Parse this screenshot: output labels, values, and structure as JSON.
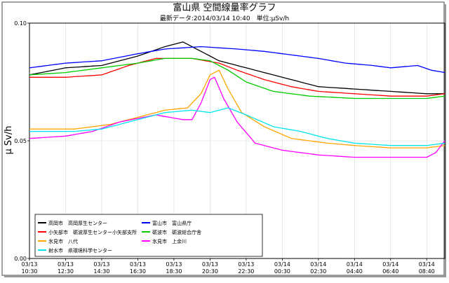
{
  "chart_data": {
    "type": "line",
    "title": "富山県 空間線量率グラフ",
    "subtitle": "最新データ:2014/03/14 10:40　単位:μSv/h",
    "ylabel": "μ Sv/h",
    "ylim": [
      0.0,
      0.1
    ],
    "y_ticks": [
      "0.10",
      "0.05",
      "0.00"
    ],
    "y_tick_values": [
      0.1,
      0.05,
      0.0
    ],
    "x_count": 93,
    "x_ticks": [
      {
        "i": 0,
        "date": "03/13",
        "time": "10:30"
      },
      {
        "i": 8,
        "date": "03/13",
        "time": "12:30"
      },
      {
        "i": 16,
        "date": "03/13",
        "time": "14:30"
      },
      {
        "i": 24,
        "date": "03/13",
        "time": "16:30"
      },
      {
        "i": 32,
        "date": "03/13",
        "time": "18:30"
      },
      {
        "i": 40,
        "date": "03/13",
        "time": "20:30"
      },
      {
        "i": 48,
        "date": "03/13",
        "time": "22:30"
      },
      {
        "i": 56,
        "date": "03/14",
        "time": "00:30"
      },
      {
        "i": 64,
        "date": "03/14",
        "time": "02:30"
      },
      {
        "i": 72,
        "date": "03/14",
        "time": "04:40"
      },
      {
        "i": 80,
        "date": "03/14",
        "time": "06:40"
      },
      {
        "i": 88,
        "date": "03/14",
        "time": "08:40"
      }
    ],
    "grid": true,
    "legend_position": "bottom-left",
    "series": [
      {
        "name": "高岡市　高岡厚生センター",
        "color": "#000000",
        "knots": [
          [
            0,
            0.078
          ],
          [
            8,
            0.081
          ],
          [
            16,
            0.082
          ],
          [
            24,
            0.086
          ],
          [
            30,
            0.09
          ],
          [
            34,
            0.092
          ],
          [
            38,
            0.088
          ],
          [
            42,
            0.084
          ],
          [
            46,
            0.082
          ],
          [
            52,
            0.079
          ],
          [
            58,
            0.076
          ],
          [
            64,
            0.073
          ],
          [
            72,
            0.072
          ],
          [
            80,
            0.071
          ],
          [
            88,
            0.07
          ],
          [
            92,
            0.07
          ]
        ]
      },
      {
        "name": "富山市　富山県庁",
        "color": "#0000ff",
        "knots": [
          [
            0,
            0.081
          ],
          [
            8,
            0.083
          ],
          [
            16,
            0.084
          ],
          [
            24,
            0.087
          ],
          [
            30,
            0.089
          ],
          [
            38,
            0.09
          ],
          [
            46,
            0.089
          ],
          [
            52,
            0.088
          ],
          [
            56,
            0.087
          ],
          [
            64,
            0.085
          ],
          [
            70,
            0.083
          ],
          [
            76,
            0.082
          ],
          [
            80,
            0.081
          ],
          [
            86,
            0.082
          ],
          [
            89,
            0.08
          ],
          [
            92,
            0.079
          ]
        ]
      },
      {
        "name": "小矢部市　砺波厚生センター小矢部支所",
        "color": "#ff0000",
        "knots": [
          [
            0,
            0.077
          ],
          [
            8,
            0.077
          ],
          [
            16,
            0.078
          ],
          [
            22,
            0.082
          ],
          [
            28,
            0.085
          ],
          [
            36,
            0.085
          ],
          [
            42,
            0.083
          ],
          [
            46,
            0.08
          ],
          [
            52,
            0.076
          ],
          [
            58,
            0.073
          ],
          [
            64,
            0.071
          ],
          [
            72,
            0.07
          ],
          [
            80,
            0.069
          ],
          [
            88,
            0.069
          ],
          [
            92,
            0.07
          ]
        ]
      },
      {
        "name": "砺波市　砺波総合庁舎",
        "color": "#00cc00",
        "knots": [
          [
            0,
            0.078
          ],
          [
            8,
            0.079
          ],
          [
            16,
            0.081
          ],
          [
            24,
            0.083
          ],
          [
            30,
            0.085
          ],
          [
            36,
            0.085
          ],
          [
            40,
            0.084
          ],
          [
            44,
            0.08
          ],
          [
            48,
            0.075
          ],
          [
            54,
            0.071
          ],
          [
            62,
            0.069
          ],
          [
            72,
            0.068
          ],
          [
            80,
            0.068
          ],
          [
            88,
            0.068
          ],
          [
            92,
            0.069
          ]
        ]
      },
      {
        "name": "氷見市　八代",
        "color": "#ffa500",
        "knots": [
          [
            0,
            0.055
          ],
          [
            10,
            0.055
          ],
          [
            18,
            0.057
          ],
          [
            24,
            0.06
          ],
          [
            30,
            0.063
          ],
          [
            35,
            0.064
          ],
          [
            38,
            0.07
          ],
          [
            40,
            0.078
          ],
          [
            42,
            0.08
          ],
          [
            44,
            0.072
          ],
          [
            47,
            0.062
          ],
          [
            52,
            0.056
          ],
          [
            58,
            0.051
          ],
          [
            66,
            0.049
          ],
          [
            72,
            0.048
          ],
          [
            80,
            0.047
          ],
          [
            88,
            0.047
          ],
          [
            92,
            0.048
          ]
        ]
      },
      {
        "name": "氷見市　上余川",
        "color": "#ff00ff",
        "knots": [
          [
            0,
            0.051
          ],
          [
            8,
            0.052
          ],
          [
            14,
            0.054
          ],
          [
            20,
            0.058
          ],
          [
            28,
            0.061
          ],
          [
            34,
            0.059
          ],
          [
            36,
            0.059
          ],
          [
            38,
            0.066
          ],
          [
            40,
            0.076
          ],
          [
            41,
            0.077
          ],
          [
            43,
            0.068
          ],
          [
            46,
            0.058
          ],
          [
            50,
            0.049
          ],
          [
            56,
            0.046
          ],
          [
            64,
            0.044
          ],
          [
            72,
            0.043
          ],
          [
            80,
            0.043
          ],
          [
            88,
            0.043
          ],
          [
            90,
            0.045
          ],
          [
            92,
            0.05
          ]
        ]
      },
      {
        "name": "射水市　県環境科学センター",
        "color": "#00e5ee",
        "knots": [
          [
            0,
            0.054
          ],
          [
            10,
            0.054
          ],
          [
            16,
            0.055
          ],
          [
            24,
            0.059
          ],
          [
            30,
            0.062
          ],
          [
            36,
            0.063
          ],
          [
            40,
            0.062
          ],
          [
            44,
            0.064
          ],
          [
            48,
            0.061
          ],
          [
            54,
            0.056
          ],
          [
            60,
            0.054
          ],
          [
            66,
            0.051
          ],
          [
            72,
            0.049
          ],
          [
            80,
            0.048
          ],
          [
            88,
            0.048
          ],
          [
            92,
            0.049
          ]
        ]
      }
    ]
  }
}
